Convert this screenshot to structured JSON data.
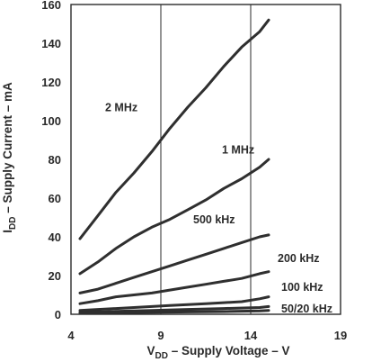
{
  "chart_data": {
    "type": "line",
    "xlabel_main": "V",
    "xlabel_sub": "DD",
    "xlabel_rest": " – Supply Voltage – V",
    "ylabel_main": "I",
    "ylabel_sub": "DD",
    "ylabel_rest": " – Supply Current – mA",
    "xlim": [
      4,
      19
    ],
    "ylim": [
      0,
      160
    ],
    "xticks": [
      "4",
      "9",
      "14",
      "19"
    ],
    "xtick_values": [
      4,
      9,
      14,
      19
    ],
    "yticks": [
      "0",
      "20",
      "40",
      "60",
      "80",
      "100",
      "120",
      "140",
      "160"
    ],
    "ytick_values": [
      0,
      20,
      40,
      60,
      80,
      100,
      120,
      140,
      160
    ],
    "grid": "vertical",
    "series": [
      {
        "name": "2 MHz",
        "x": [
          4.5,
          5.5,
          6.5,
          7.5,
          8.5,
          9.5,
          10.5,
          11.5,
          12.5,
          13.5,
          14.5,
          15
        ],
        "y": [
          39,
          51,
          63,
          73,
          84,
          96,
          107,
          117,
          128,
          138,
          146,
          152
        ]
      },
      {
        "name": "1 MHz",
        "x": [
          4.5,
          5.5,
          6.5,
          7.5,
          8.5,
          9.5,
          10.5,
          11.5,
          12.5,
          13.5,
          14.5,
          15
        ],
        "y": [
          21,
          27,
          34,
          40,
          45,
          49,
          54,
          59,
          65,
          70,
          76,
          80
        ]
      },
      {
        "name": "500 kHz",
        "x": [
          4.5,
          5.5,
          6.5,
          7.5,
          8.5,
          9.5,
          10.5,
          11.5,
          12.5,
          13.5,
          14.5,
          15
        ],
        "y": [
          11,
          13,
          16,
          19,
          22,
          25,
          28,
          31,
          34,
          37,
          40,
          41
        ]
      },
      {
        "name": "200 kHz",
        "x": [
          4.5,
          5.5,
          6.5,
          7.5,
          8.5,
          9.5,
          10.5,
          11.5,
          12.5,
          13.5,
          14.5,
          15
        ],
        "y": [
          5.5,
          7,
          9,
          10,
          11,
          12.5,
          14,
          15.5,
          17,
          18.5,
          21,
          22
        ]
      },
      {
        "name": "100 kHz",
        "x": [
          4.5,
          5.5,
          6.5,
          7.5,
          8.5,
          9.5,
          10.5,
          11.5,
          12.5,
          13.5,
          14.5,
          15
        ],
        "y": [
          2,
          2.5,
          3,
          3.5,
          4,
          4.5,
          5,
          5.5,
          6,
          6.5,
          8,
          9
        ]
      },
      {
        "name": "50 kHz",
        "x": [
          4.5,
          6.5,
          8.5,
          10.5,
          12.5,
          14.5,
          15
        ],
        "y": [
          1,
          1.5,
          2,
          2.5,
          3,
          3.5,
          4
        ]
      },
      {
        "name": "20 kHz",
        "x": [
          4.5,
          6.5,
          8.5,
          10.5,
          12.5,
          14.5,
          15
        ],
        "y": [
          0.5,
          0.8,
          1,
          1.2,
          1.4,
          1.7,
          2
        ]
      }
    ],
    "labels": [
      {
        "text": "2 MHz",
        "x": 5.9,
        "y": 105
      },
      {
        "text": "1 MHz",
        "x": 12.4,
        "y": 83
      },
      {
        "text": "500 kHz",
        "x": 10.8,
        "y": 47
      },
      {
        "text": "200 kHz",
        "x": 15.5,
        "y": 27
      },
      {
        "text": "100 kHz",
        "x": 15.7,
        "y": 12
      },
      {
        "text": "50/20 kHz",
        "x": 15.7,
        "y": 1
      }
    ]
  }
}
